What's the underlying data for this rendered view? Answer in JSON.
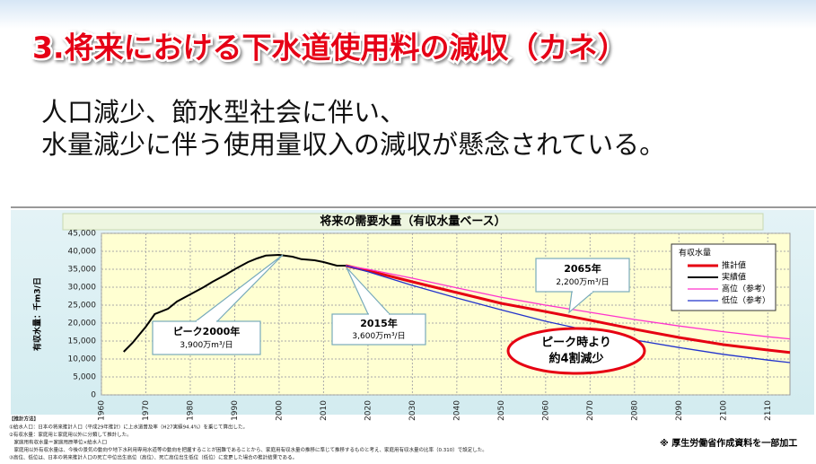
{
  "header": {
    "title": "3.将来における下水道使用料の減収（カネ）",
    "lines": [
      "人口減少、節水型社会に伴い、",
      "水量減少に伴う使用量収入の減収が懸念されている。"
    ]
  },
  "chart_data": {
    "type": "line",
    "title": "将来の需要水量（有収水量ベース）",
    "y_label": "有収水量：千m3/日",
    "xlim": [
      1960,
      2115
    ],
    "ylim": [
      0,
      45000
    ],
    "xticks": [
      1960,
      1970,
      1980,
      1990,
      2000,
      2010,
      2020,
      2030,
      2040,
      2050,
      2060,
      2070,
      2080,
      2090,
      2100,
      2110
    ],
    "yticks": [
      0,
      {
        "value": 5000,
        "label": "5,000"
      },
      {
        "value": 10000,
        "label": "10,000"
      },
      {
        "value": 15000,
        "label": "15,000"
      },
      {
        "value": 20000,
        "label": "20,000"
      },
      {
        "value": 25000,
        "label": "25,000"
      },
      {
        "value": 30000,
        "label": "30,000"
      },
      {
        "value": 35000,
        "label": "35,000"
      },
      {
        "value": 40000,
        "label": "40,000"
      },
      {
        "value": 45000,
        "label": "45,000"
      }
    ],
    "grid": true,
    "legend": "upper right",
    "legend_title": "有収水量",
    "series": [
      {
        "name": "推計値",
        "color": "#e60012",
        "width": 3,
        "x": [
          2015,
          2020,
          2030,
          2040,
          2050,
          2060,
          2065,
          2070,
          2080,
          2090,
          2100,
          2110,
          2115
        ],
        "values": [
          36000,
          34600,
          31500,
          28500,
          25500,
          23200,
          22000,
          20800,
          18300,
          16000,
          14000,
          12500,
          11800
        ]
      },
      {
        "name": "実績値",
        "color": "#000000",
        "width": 2,
        "x": [
          1965,
          1967,
          1970,
          1972,
          1975,
          1977,
          1980,
          1983,
          1985,
          1988,
          1990,
          1993,
          1995,
          1997,
          2000,
          2003,
          2005,
          2008,
          2010,
          2013,
          2015
        ],
        "values": [
          12000,
          14500,
          19000,
          22500,
          24000,
          26000,
          28000,
          30000,
          31500,
          33500,
          35000,
          37000,
          38000,
          38800,
          39000,
          38500,
          37800,
          37500,
          37000,
          36000,
          36000
        ]
      },
      {
        "name": "高位（参考）",
        "color": "#ff33cc",
        "width": 1.3,
        "x": [
          2015,
          2020,
          2030,
          2040,
          2050,
          2060,
          2070,
          2080,
          2090,
          2100,
          2110,
          2115
        ],
        "values": [
          36000,
          35000,
          32500,
          29800,
          27200,
          25000,
          23000,
          21000,
          19200,
          17600,
          16200,
          15600
        ]
      },
      {
        "name": "低位（参考）",
        "color": "#2233cc",
        "width": 1.3,
        "x": [
          2015,
          2020,
          2030,
          2040,
          2050,
          2060,
          2070,
          2080,
          2090,
          2100,
          2110,
          2115
        ],
        "values": [
          36000,
          34300,
          30500,
          27000,
          23700,
          20500,
          17800,
          15300,
          13200,
          11300,
          9700,
          9000
        ]
      }
    ],
    "annotations": [
      {
        "title": "ピーク2000年",
        "text": "3,900万m³/日"
      },
      {
        "title": "2015年",
        "text": "3,600万m³/日"
      },
      {
        "title": "2065年",
        "text": "2,200万m³/日"
      }
    ],
    "highlight": [
      "ピーク時より",
      "約4割減少"
    ]
  },
  "notes": {
    "heading": "【推計方法】",
    "lines": [
      "①給水人口：日本の将来推計人口（平成29年推計）に上水道普及率（H27実績94.4%）を乗じて算出した。",
      "②有収水量：家庭用と家庭用以外に分類して推計した。",
      "　家庭用有収水量＝家庭用原単位×給水人口",
      "　家庭用以外有収水量は、今後の景気の動向や地下水利用専用水道等の動向を把握することが困難であることから、家庭用有収水量の推移に準じて推移するものと考え、家庭用有収水量の比率（0.310）で設定した。",
      "③高位、低位は、日本の将来推計人口の死亡中位出生高位（高位）、死亡高位出生低位（低位）に変更した場合の推計結果である。"
    ]
  },
  "source": "※ 厚生労働省作成資料を一部加工"
}
